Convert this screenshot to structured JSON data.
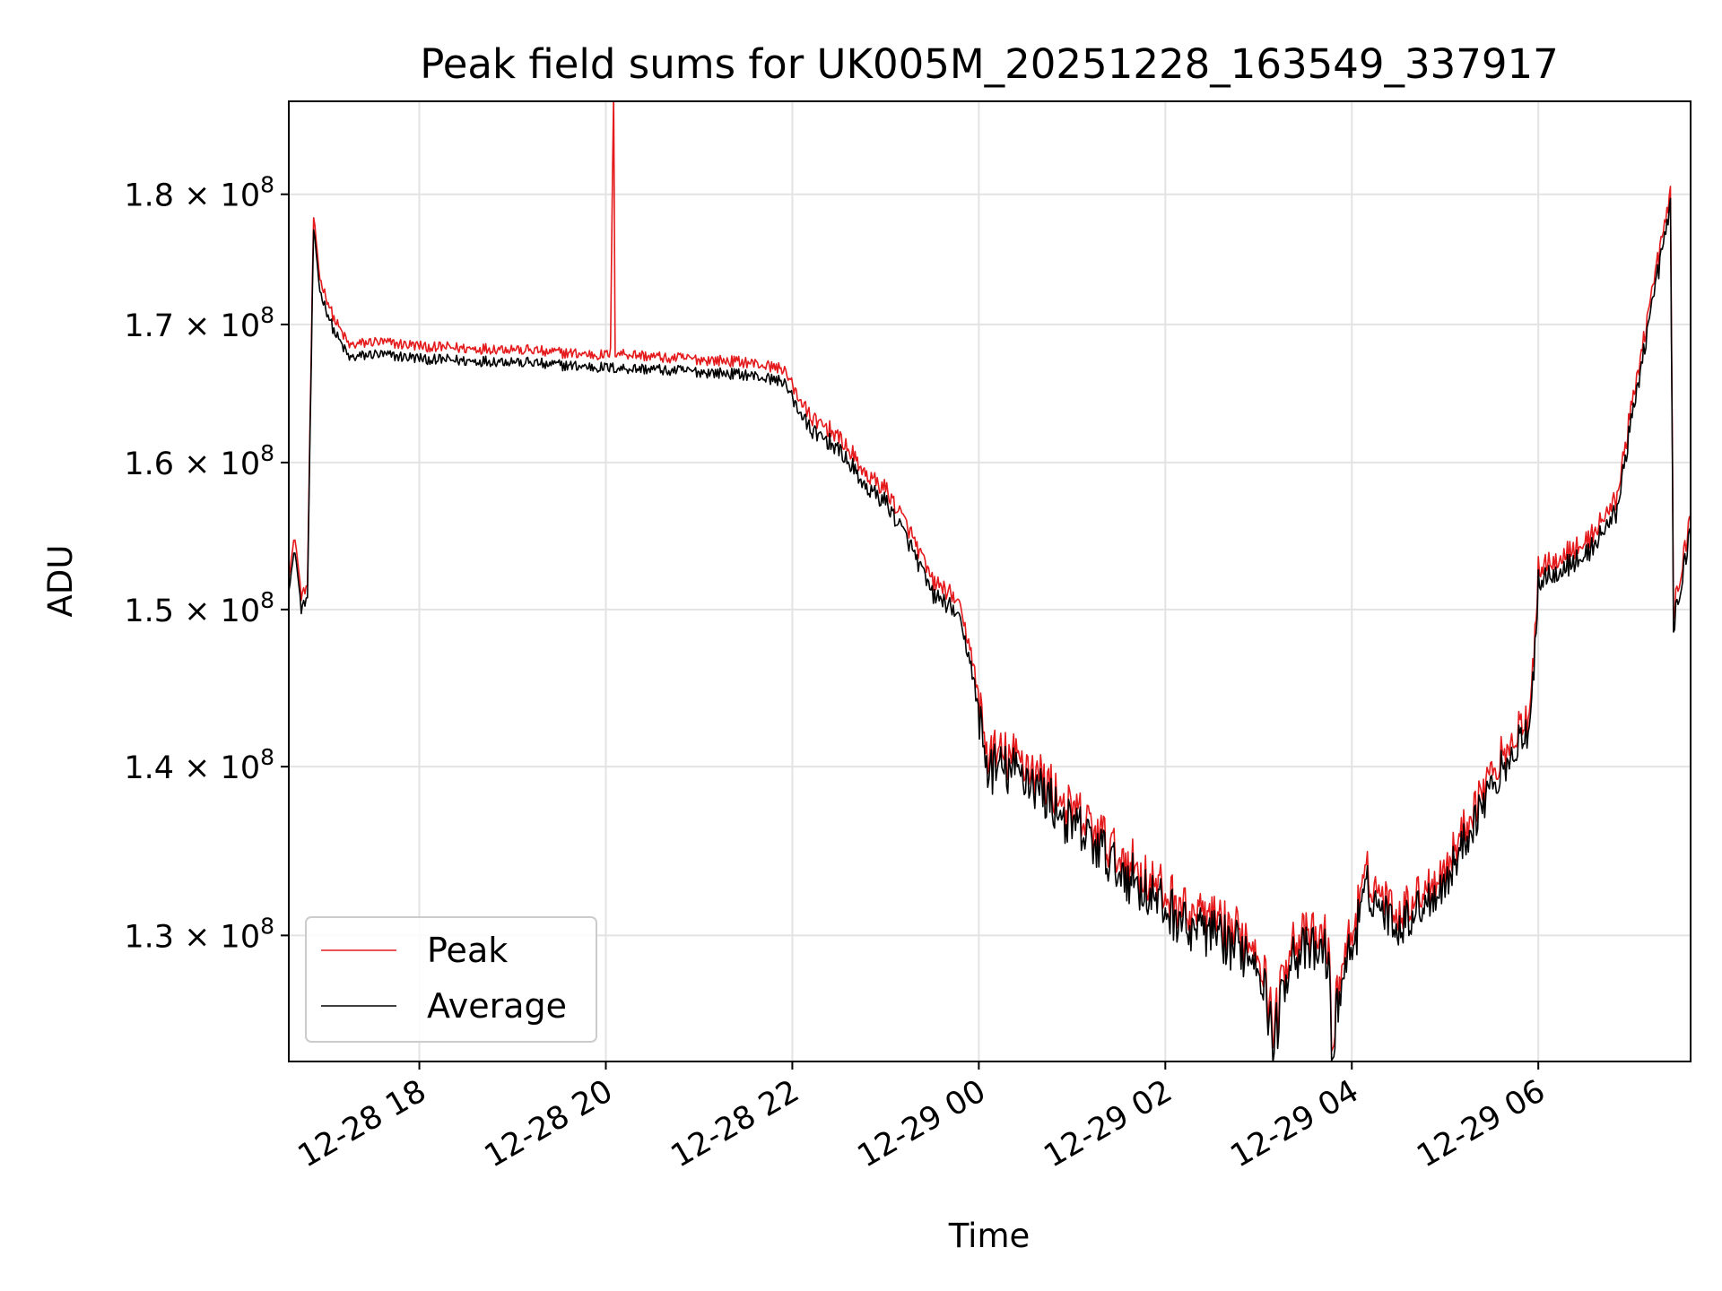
{
  "chart_data": {
    "type": "line",
    "title": "Peak field sums for UK005M_20251228_163549_337917",
    "xlabel": "Time",
    "ylabel": "ADU",
    "y_scale": "log",
    "grid": true,
    "legend_position": "lower-left",
    "xlim": [
      "2025-12-28 16:36",
      "2025-12-29 07:38"
    ],
    "ylim": [
      123000000,
      187500000
    ],
    "x_ticks": [
      "2025-12-28 18:00",
      "2025-12-28 20:00",
      "2025-12-28 22:00",
      "2025-12-29 00:00",
      "2025-12-29 02:00",
      "2025-12-29 04:00",
      "2025-12-29 06:00"
    ],
    "x_tick_labels": [
      "12-28 18",
      "12-28 20",
      "12-28 22",
      "12-29 00",
      "12-29 02",
      "12-29 04",
      "12-29 06"
    ],
    "y_ticks": [
      130000000,
      140000000,
      150000000,
      160000000,
      170000000,
      180000000
    ],
    "y_tick_labels": [
      {
        "mantissa": "1.3",
        "exp": "8"
      },
      {
        "mantissa": "1.4",
        "exp": "8"
      },
      {
        "mantissa": "1.5",
        "exp": "8"
      },
      {
        "mantissa": "1.6",
        "exp": "8"
      },
      {
        "mantissa": "1.7",
        "exp": "8"
      },
      {
        "mantissa": "1.8",
        "exp": "8"
      }
    ],
    "series": [
      {
        "name": "Peak",
        "color": "#e41a1c",
        "points": [
          [
            "2025-12-28 16:36",
            152000000
          ],
          [
            "2025-12-28 16:40",
            154500000
          ],
          [
            "2025-12-28 16:44",
            150500000
          ],
          [
            "2025-12-28 16:48",
            151200000
          ],
          [
            "2025-12-28 16:52",
            178000000
          ],
          [
            "2025-12-28 16:56",
            173000000
          ],
          [
            "2025-12-28 17:05",
            170000000
          ],
          [
            "2025-12-28 17:15",
            168000000
          ],
          [
            "2025-12-28 17:30",
            168300000
          ],
          [
            "2025-12-28 18:00",
            168000000
          ],
          [
            "2025-12-28 18:30",
            167800000
          ],
          [
            "2025-12-28 19:00",
            167800000
          ],
          [
            "2025-12-28 19:30",
            167500000
          ],
          [
            "2025-12-28 20:00",
            167300000
          ],
          [
            "2025-12-28 20:03",
            167500000
          ],
          [
            "2025-12-28 20:05",
            188000000
          ],
          [
            "2025-12-28 20:06",
            167500000
          ],
          [
            "2025-12-28 20:30",
            167200000
          ],
          [
            "2025-12-28 21:00",
            167000000
          ],
          [
            "2025-12-28 21:30",
            166800000
          ],
          [
            "2025-12-28 21:55",
            166300000
          ],
          [
            "2025-12-28 22:10",
            163000000
          ],
          [
            "2025-12-28 22:30",
            161500000
          ],
          [
            "2025-12-28 22:50",
            158500000
          ],
          [
            "2025-12-28 23:00",
            157800000
          ],
          [
            "2025-12-28 23:15",
            155000000
          ],
          [
            "2025-12-28 23:30",
            151500000
          ],
          [
            "2025-12-28 23:45",
            150500000
          ],
          [
            "2025-12-28 23:55",
            147000000
          ],
          [
            "2025-12-29 00:05",
            140500000
          ],
          [
            "2025-12-29 00:30",
            140000000
          ],
          [
            "2025-12-29 01:00",
            137000000
          ],
          [
            "2025-12-29 01:30",
            134500000
          ],
          [
            "2025-12-29 02:00",
            132000000
          ],
          [
            "2025-12-29 02:30",
            130500000
          ],
          [
            "2025-12-29 03:00",
            129200000
          ],
          [
            "2025-12-29 03:10",
            124500000
          ],
          [
            "2025-12-29 03:20",
            129500000
          ],
          [
            "2025-12-29 03:45",
            129500000
          ],
          [
            "2025-12-29 03:47",
            123200000
          ],
          [
            "2025-12-29 03:52",
            127500000
          ],
          [
            "2025-12-29 04:10",
            133000000
          ],
          [
            "2025-12-29 04:30",
            131000000
          ],
          [
            "2025-12-29 05:00",
            133500000
          ],
          [
            "2025-12-29 05:30",
            139500000
          ],
          [
            "2025-12-29 05:55",
            143000000
          ],
          [
            "2025-12-29 06:00",
            152500000
          ],
          [
            "2025-12-29 06:30",
            154000000
          ],
          [
            "2025-12-29 06:50",
            157000000
          ],
          [
            "2025-12-29 07:10",
            170000000
          ],
          [
            "2025-12-29 07:25",
            179500000
          ],
          [
            "2025-12-29 07:27",
            149500000
          ],
          [
            "2025-12-29 07:38",
            156000000
          ]
        ]
      },
      {
        "name": "Average",
        "color": "#000000",
        "points": [
          [
            "2025-12-28 16:36",
            151500000
          ],
          [
            "2025-12-28 16:40",
            154000000
          ],
          [
            "2025-12-28 16:44",
            150000000
          ],
          [
            "2025-12-28 16:48",
            150800000
          ],
          [
            "2025-12-28 16:52",
            177500000
          ],
          [
            "2025-12-28 16:56",
            172500000
          ],
          [
            "2025-12-28 17:05",
            169500000
          ],
          [
            "2025-12-28 17:15",
            167500000
          ],
          [
            "2025-12-28 17:30",
            167800000
          ],
          [
            "2025-12-28 18:00",
            167500000
          ],
          [
            "2025-12-28 18:30",
            167300000
          ],
          [
            "2025-12-28 19:00",
            167300000
          ],
          [
            "2025-12-28 19:30",
            167000000
          ],
          [
            "2025-12-28 20:00",
            166800000
          ],
          [
            "2025-12-28 20:30",
            166700000
          ],
          [
            "2025-12-28 21:00",
            166500000
          ],
          [
            "2025-12-28 21:30",
            166300000
          ],
          [
            "2025-12-28 21:55",
            165800000
          ],
          [
            "2025-12-28 22:10",
            162500000
          ],
          [
            "2025-12-28 22:30",
            161000000
          ],
          [
            "2025-12-28 22:50",
            158000000
          ],
          [
            "2025-12-28 23:00",
            157300000
          ],
          [
            "2025-12-28 23:15",
            154500000
          ],
          [
            "2025-12-28 23:30",
            151000000
          ],
          [
            "2025-12-28 23:45",
            150000000
          ],
          [
            "2025-12-28 23:55",
            146500000
          ],
          [
            "2025-12-29 00:05",
            140000000
          ],
          [
            "2025-12-29 00:30",
            139500000
          ],
          [
            "2025-12-29 01:00",
            136500000
          ],
          [
            "2025-12-29 01:30",
            134000000
          ],
          [
            "2025-12-29 02:00",
            131500000
          ],
          [
            "2025-12-29 02:30",
            130000000
          ],
          [
            "2025-12-29 03:00",
            128800000
          ],
          [
            "2025-12-29 03:10",
            124000000
          ],
          [
            "2025-12-29 03:20",
            129000000
          ],
          [
            "2025-12-29 03:45",
            129000000
          ],
          [
            "2025-12-29 03:47",
            123000000
          ],
          [
            "2025-12-29 03:52",
            127000000
          ],
          [
            "2025-12-29 04:10",
            132500000
          ],
          [
            "2025-12-29 04:30",
            130500000
          ],
          [
            "2025-12-29 05:00",
            133000000
          ],
          [
            "2025-12-29 05:30",
            139000000
          ],
          [
            "2025-12-29 05:55",
            142500000
          ],
          [
            "2025-12-29 06:00",
            152000000
          ],
          [
            "2025-12-29 06:30",
            153500000
          ],
          [
            "2025-12-29 06:50",
            156500000
          ],
          [
            "2025-12-29 07:10",
            169500000
          ],
          [
            "2025-12-29 07:25",
            179000000
          ],
          [
            "2025-12-29 07:27",
            149000000
          ],
          [
            "2025-12-29 07:38",
            155500000
          ]
        ]
      }
    ]
  }
}
